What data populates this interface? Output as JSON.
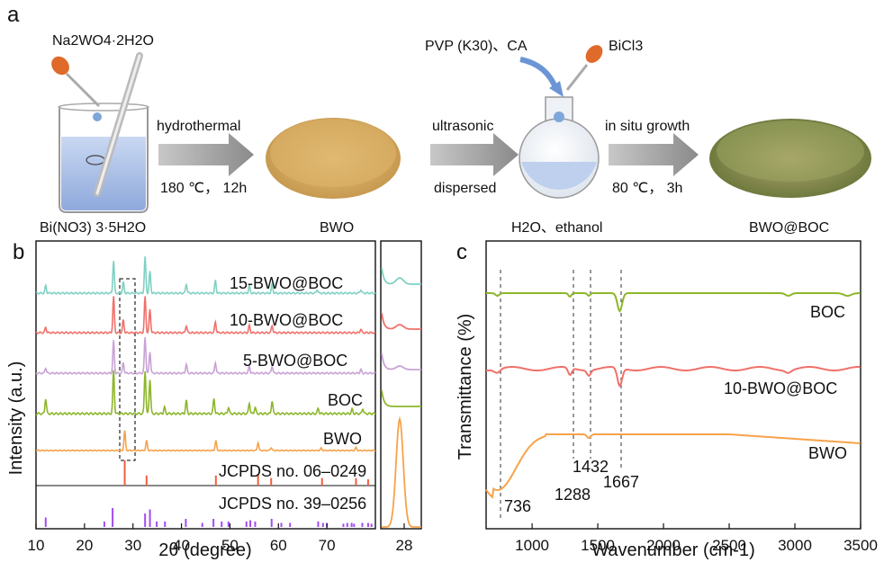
{
  "panel_a": {
    "letter": "a",
    "reagent_left": "Na2WO4·2H2O",
    "precursor_left": "Bi(NO3) 3·5H2O",
    "step1_top": "hydrothermal",
    "step1_bottom": "180 ℃， 12h",
    "product1": "BWO",
    "step2_top": "ultrasonic",
    "step2_bottom": "dispersed",
    "reagents_middle": "PVP (K30)、CA",
    "reagent_right": "BiCl3",
    "solvent": "H2O、ethanol",
    "step3_top": "in situ growth",
    "step3_bottom": "80 ℃， 3h",
    "product2": "BWO@BOC"
  },
  "chart_data": [
    {
      "panel": "b",
      "type": "line",
      "xlabel": "2θ (degree)",
      "ylabel": "Intensity (a.u.)",
      "xlim": [
        10,
        80
      ],
      "x_ticks": [
        10,
        20,
        30,
        40,
        50,
        60,
        70
      ],
      "series": [
        {
          "name": "15-BWO@BOC",
          "color": "#7fd1c3",
          "peaks": [
            [
              12,
              0.2
            ],
            [
              26,
              0.9
            ],
            [
              28,
              0.3
            ],
            [
              32.5,
              1.0
            ],
            [
              33.5,
              0.6
            ],
            [
              41,
              0.25
            ],
            [
              47,
              0.35
            ],
            [
              54,
              0.2
            ],
            [
              58.7,
              0.25
            ],
            [
              68,
              0.1
            ],
            [
              77,
              0.1
            ]
          ]
        },
        {
          "name": "10-BWO@BOC",
          "color": "#f0706a",
          "peaks": [
            [
              12,
              0.15
            ],
            [
              26,
              1.0
            ],
            [
              28,
              0.35
            ],
            [
              32.5,
              1.0
            ],
            [
              33.5,
              0.65
            ],
            [
              41,
              0.2
            ],
            [
              47,
              0.3
            ],
            [
              54,
              0.2
            ],
            [
              58.7,
              0.2
            ],
            [
              77,
              0.1
            ]
          ]
        },
        {
          "name": "5-BWO@BOC",
          "color": "#c9a2d6",
          "peaks": [
            [
              12,
              0.15
            ],
            [
              26,
              0.9
            ],
            [
              28,
              0.3
            ],
            [
              32.5,
              1.0
            ],
            [
              33.5,
              0.6
            ],
            [
              41,
              0.25
            ],
            [
              47,
              0.3
            ],
            [
              54,
              0.2
            ],
            [
              58.7,
              0.2
            ],
            [
              77,
              0.1
            ]
          ]
        },
        {
          "name": "BOC",
          "color": "#8db62b",
          "peaks": [
            [
              12,
              0.35
            ],
            [
              26,
              1.0
            ],
            [
              32.5,
              1.0
            ],
            [
              33.5,
              0.8
            ],
            [
              36.5,
              0.15
            ],
            [
              41,
              0.3
            ],
            [
              46.7,
              0.35
            ],
            [
              49.7,
              0.15
            ],
            [
              54,
              0.25
            ],
            [
              55.2,
              0.15
            ],
            [
              58.7,
              0.3
            ],
            [
              68.2,
              0.12
            ],
            [
              75.2,
              0.1
            ],
            [
              77.4,
              0.12
            ]
          ]
        },
        {
          "name": "BWO",
          "color": "#f7a24a",
          "peaks": [
            [
              28.3,
              1.0
            ],
            [
              32.8,
              0.5
            ],
            [
              47.1,
              0.5
            ],
            [
              55.8,
              0.4
            ],
            [
              58.5,
              0.15
            ],
            [
              68.8,
              0.12
            ],
            [
              76,
              0.15
            ]
          ]
        }
      ],
      "reference_1": {
        "label": "JCPDS no. 06–0249",
        "color": "#f06040",
        "lines": [
          [
            28.3,
            1.0
          ],
          [
            32.8,
            0.4
          ],
          [
            47.1,
            0.4
          ],
          [
            55.8,
            0.45
          ],
          [
            58.5,
            0.3
          ],
          [
            69,
            0.3
          ],
          [
            76,
            0.3
          ],
          [
            78.5,
            0.25
          ]
        ]
      },
      "reference_2": {
        "label": "JCPDS no. 39–0256",
        "color": "#a14cf0",
        "lines": [
          [
            12,
            0.35
          ],
          [
            24.1,
            0.2
          ],
          [
            25.8,
            0.7
          ],
          [
            32.5,
            0.5
          ],
          [
            33.5,
            0.65
          ],
          [
            34.9,
            0.2
          ],
          [
            36.6,
            0.2
          ],
          [
            40.9,
            0.3
          ],
          [
            44.3,
            0.15
          ],
          [
            46.6,
            0.3
          ],
          [
            48.3,
            0.2
          ],
          [
            49.7,
            0.2
          ],
          [
            53.4,
            0.2
          ],
          [
            54.2,
            0.25
          ],
          [
            55.2,
            0.2
          ],
          [
            58.6,
            0.3
          ],
          [
            60.6,
            0.15
          ],
          [
            62.4,
            0.15
          ],
          [
            68.2,
            0.2
          ],
          [
            69.2,
            0.15
          ],
          [
            70,
            0.15
          ],
          [
            73.4,
            0.12
          ],
          [
            74.2,
            0.15
          ],
          [
            75.1,
            0.15
          ],
          [
            75.6,
            0.12
          ],
          [
            77.3,
            0.15
          ],
          [
            78.5,
            0.15
          ],
          [
            79.2,
            0.12
          ]
        ]
      },
      "inset": {
        "x_tick": "28",
        "curves": [
          {
            "color": "#7fd1c3",
            "peak": 28.2,
            "height": 0.35
          },
          {
            "color": "#f0706a",
            "peak": 28.2,
            "height": 0.25
          },
          {
            "color": "#c9a2d6",
            "peak": 28.2,
            "height": 0.2
          },
          {
            "color": "#8db62b",
            "peak": 28.2,
            "height": 0.0
          },
          {
            "color": "#f7a24a",
            "peak": 28.2,
            "height": 1.0
          }
        ]
      }
    },
    {
      "panel": "c",
      "type": "line",
      "xlabel": "Wavenumber (cm-1)",
      "ylabel": "Transmittance (%)",
      "xlim": [
        650,
        3500
      ],
      "x_ticks": [
        1000,
        1500,
        2000,
        2500,
        3000,
        3500
      ],
      "annotations": [
        "736",
        "1288",
        "1432",
        "1667"
      ],
      "series": [
        {
          "name": "BOC",
          "color": "#8db62b"
        },
        {
          "name": "10-BWO@BOC",
          "color": "#f0706a"
        },
        {
          "name": "BWO",
          "color": "#f7a24a"
        }
      ]
    }
  ]
}
